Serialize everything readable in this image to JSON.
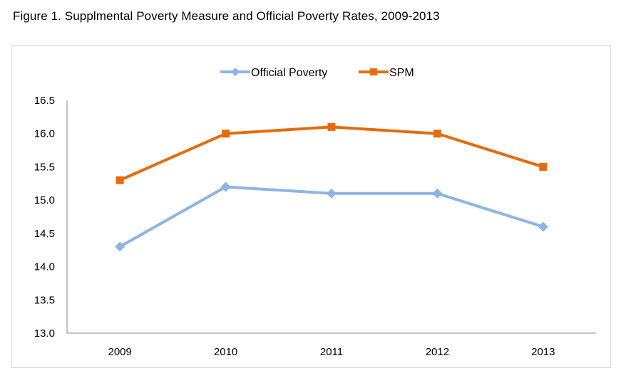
{
  "figure_title": "Figure 1.  Supplmental Poverty Measure and Official Poverty Rates, 2009-2013",
  "chart_data": {
    "type": "line",
    "title": "Figure 1.  Supplmental Poverty Measure and Official Poverty Rates, 2009-2013",
    "xlabel": "",
    "ylabel": "",
    "categories": [
      "2009",
      "2010",
      "2011",
      "2012",
      "2013"
    ],
    "ylim": [
      13.0,
      16.5
    ],
    "yticks": [
      "13.0",
      "13.5",
      "14.0",
      "14.5",
      "15.0",
      "15.5",
      "16.0",
      "16.5"
    ],
    "grid": false,
    "legend_position": "top-center",
    "series": [
      {
        "name": "Official Poverty",
        "values": [
          14.3,
          15.2,
          15.1,
          15.1,
          14.6
        ],
        "color": "#8eb4e3",
        "marker": "diamond"
      },
      {
        "name": "SPM",
        "values": [
          15.3,
          16.0,
          16.1,
          16.0,
          15.5
        ],
        "color": "#e46c0a",
        "marker": "square"
      }
    ]
  }
}
